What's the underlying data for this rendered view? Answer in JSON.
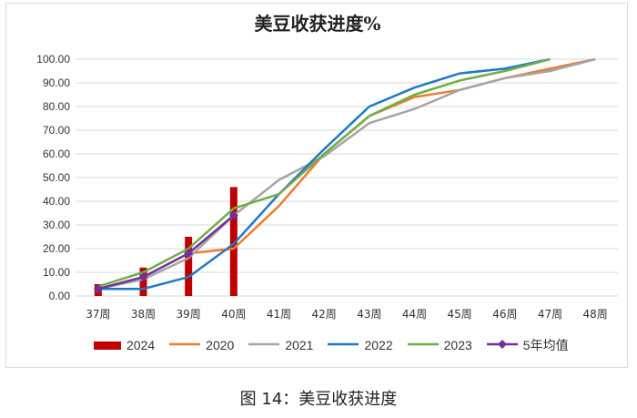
{
  "caption": "图 14：美豆收获进度",
  "chart_data": {
    "type": "line",
    "title": "美豆收获进度%",
    "categories": [
      "37周",
      "38周",
      "39周",
      "40周",
      "41周",
      "42周",
      "43周",
      "44周",
      "45周",
      "46周",
      "47周",
      "48周"
    ],
    "ylim": [
      0,
      100
    ],
    "yticks": [
      "0.00",
      "10.00",
      "20.00",
      "30.00",
      "40.00",
      "50.00",
      "60.00",
      "70.00",
      "80.00",
      "90.00",
      "100.00"
    ],
    "grid": true,
    "legend_position": "bottom",
    "bar_series": {
      "name": "2024",
      "color": "#c00000",
      "values": [
        5,
        12,
        25,
        46
      ]
    },
    "series": [
      {
        "name": "2020",
        "color": "#ed7d31",
        "values": [
          3,
          8,
          18,
          20,
          38,
          60,
          76,
          84,
          87,
          92,
          96,
          100
        ]
      },
      {
        "name": "2021",
        "color": "#a5a5a5",
        "values": [
          3,
          7,
          16,
          34,
          49,
          59,
          73,
          79,
          87,
          92,
          95,
          100
        ]
      },
      {
        "name": "2022",
        "color": "#1f77c8",
        "values": [
          3,
          3,
          8,
          22,
          43,
          62,
          80,
          88,
          94,
          96,
          100,
          null
        ]
      },
      {
        "name": "2023",
        "color": "#70ad47",
        "values": [
          4,
          10,
          20,
          37,
          43,
          60,
          76,
          85,
          91,
          95,
          100,
          null
        ]
      },
      {
        "name": "5年均值",
        "color": "#7030a0",
        "marker": "diamond",
        "values": [
          3,
          8,
          18,
          34,
          null,
          null,
          null,
          null,
          null,
          null,
          null,
          null
        ]
      }
    ]
  }
}
